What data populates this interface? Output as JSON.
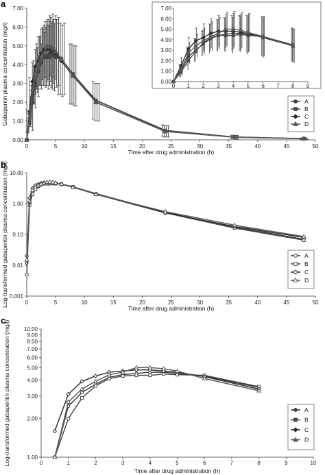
{
  "chart_data": [
    {
      "panel": "a",
      "type": "line",
      "xlabel": "Time after drug administration (h)",
      "ylabel": "Gabapentin plasma concentration (mg/l)",
      "xlim": [
        0,
        50
      ],
      "ylim": [
        0,
        7
      ],
      "xticks": [
        "0",
        "5",
        "10",
        "15",
        "20",
        "25",
        "30",
        "35",
        "40",
        "45",
        "50"
      ],
      "yticks": [
        "0.00",
        "1.00",
        "2.00",
        "3.00",
        "4.00",
        "5.00",
        "6.00",
        "7.00"
      ],
      "legend": [
        "A",
        "B",
        "C",
        "D"
      ],
      "legend_position": "right, below inset",
      "x": [
        0,
        0.5,
        1,
        1.5,
        2,
        2.5,
        3,
        3.5,
        4,
        4.5,
        5,
        6,
        8,
        12,
        24,
        36,
        48
      ],
      "series": [
        {
          "name": "A",
          "values": [
            0,
            1.0,
            2.4,
            3.0,
            3.6,
            4.1,
            4.4,
            4.5,
            4.6,
            4.6,
            4.5,
            4.3,
            3.5,
            2.1,
            0.5,
            0.15,
            0.06
          ],
          "error": [
            0,
            0.6,
            0.9,
            1.1,
            1.2,
            1.4,
            1.5,
            1.6,
            1.7,
            1.7,
            1.8,
            1.9,
            1.6,
            1.0,
            0.3,
            0.1,
            0.04
          ]
        },
        {
          "name": "B",
          "values": [
            0,
            0.9,
            2.0,
            2.9,
            3.7,
            4.2,
            4.4,
            4.4,
            4.4,
            4.5,
            4.4,
            4.3,
            3.5,
            2.0,
            0.45,
            0.15,
            0.06
          ],
          "error": [
            0,
            0.5,
            0.9,
            1.0,
            1.2,
            1.3,
            1.5,
            1.6,
            1.7,
            1.7,
            1.8,
            1.9,
            1.6,
            1.0,
            0.3,
            0.1,
            0.04
          ]
        },
        {
          "name": "C",
          "values": [
            0,
            1.5,
            3.1,
            3.9,
            4.2,
            4.6,
            4.8,
            4.8,
            4.8,
            4.7,
            4.6,
            4.2,
            3.4,
            2.0,
            0.45,
            0.14,
            0.06
          ],
          "error": [
            0,
            0.8,
            1.1,
            1.2,
            1.3,
            1.4,
            1.5,
            1.6,
            1.7,
            1.7,
            1.8,
            1.9,
            1.6,
            1.0,
            0.3,
            0.1,
            0.04
          ]
        },
        {
          "name": "D",
          "values": [
            0,
            1.2,
            2.7,
            3.4,
            3.9,
            4.3,
            4.6,
            5.0,
            5.0,
            4.9,
            4.7,
            4.3,
            3.4,
            2.0,
            0.45,
            0.14,
            0.06
          ],
          "error": [
            0,
            0.7,
            1.0,
            1.1,
            1.2,
            1.4,
            1.5,
            1.6,
            1.7,
            1.7,
            1.8,
            1.9,
            1.6,
            1.0,
            0.3,
            0.1,
            0.04
          ]
        }
      ],
      "inset": {
        "xlim": [
          0,
          9
        ],
        "ylim": [
          0,
          7
        ],
        "xticks": [
          "0",
          "1",
          "2",
          "3",
          "4",
          "5",
          "6",
          "7",
          "8",
          "9"
        ],
        "yticks": [
          "0.00",
          "1.00",
          "2.00",
          "3.00",
          "4.00",
          "5.00",
          "6.00",
          "7.00"
        ]
      }
    },
    {
      "panel": "b",
      "type": "line",
      "xlabel": "Time after drug administration (h)",
      "ylabel": "Log-transformed gabapentin plasma concentration (mg/l)",
      "yscale": "log",
      "xlim": [
        0,
        50
      ],
      "ylim": [
        0.001,
        10
      ],
      "xticks": [
        "0",
        "5",
        "10",
        "15",
        "20",
        "25",
        "30",
        "35",
        "40",
        "45",
        "50"
      ],
      "yticks": [
        "0.001",
        "0.01",
        "0.10",
        "1.00",
        "10.00"
      ],
      "legend": [
        "A",
        "B",
        "C",
        "D"
      ],
      "legend_position": "bottom-right",
      "x": [
        0,
        0.5,
        1,
        1.5,
        2,
        2.5,
        3,
        3.5,
        4,
        4.5,
        5,
        6,
        8,
        12,
        24,
        36,
        48
      ],
      "series": [
        {
          "name": "A",
          "values": [
            0.012,
            1.0,
            2.4,
            3.0,
            3.6,
            4.1,
            4.4,
            4.5,
            4.6,
            4.6,
            4.5,
            4.3,
            3.5,
            2.1,
            0.52,
            0.17,
            0.07
          ]
        },
        {
          "name": "B",
          "values": [
            0.005,
            0.9,
            2.0,
            2.9,
            3.7,
            4.2,
            4.4,
            4.4,
            4.4,
            4.5,
            4.4,
            4.3,
            3.5,
            2.0,
            0.5,
            0.16,
            0.065
          ]
        },
        {
          "name": "C",
          "values": [
            0.02,
            1.5,
            3.1,
            3.9,
            4.2,
            4.6,
            4.8,
            4.8,
            4.8,
            4.7,
            4.6,
            4.2,
            3.4,
            2.0,
            0.5,
            0.18,
            0.08
          ]
        },
        {
          "name": "D",
          "values": [
            0.015,
            1.2,
            2.7,
            3.4,
            3.9,
            4.3,
            4.6,
            5.0,
            5.0,
            4.9,
            4.7,
            4.3,
            3.4,
            2.0,
            0.55,
            0.2,
            0.085
          ]
        }
      ]
    },
    {
      "panel": "c",
      "type": "line",
      "xlabel": "Time after drug administration (h)",
      "ylabel": "Log-transformed gabapentin plasma concentration (mg/l)",
      "yscale": "log",
      "xlim": [
        0,
        10
      ],
      "ylim": [
        1,
        10
      ],
      "xticks": [
        "0",
        "1",
        "2",
        "3",
        "4",
        "5",
        "6",
        "7",
        "8",
        "9",
        "10"
      ],
      "yticks": [
        {
          "v": 1.0,
          "t": "1.00"
        },
        {
          "v": 2.0,
          "t": "2.00"
        },
        {
          "v": 3.0,
          "t": "3.00"
        },
        {
          "v": 4.0,
          "t": "4.00"
        },
        {
          "v": 5.0,
          "t": "5.00"
        },
        {
          "v": 6.0,
          "t": "6.00"
        },
        {
          "v": 7.0,
          "t": "7.00"
        },
        {
          "v": 8.0,
          "t": "8.00"
        },
        {
          "v": 9.0,
          "t": "9.00"
        },
        {
          "v": 10.0,
          "t": "10.00"
        }
      ],
      "legend": [
        "A",
        "B",
        "C",
        "D"
      ],
      "legend_position": "bottom-right",
      "x": [
        0.5,
        1,
        1.5,
        2,
        2.5,
        3,
        3.5,
        4,
        4.5,
        5,
        6,
        8
      ],
      "series": [
        {
          "name": "A",
          "values": [
            1.0,
            2.5,
            3.2,
            3.7,
            4.2,
            4.4,
            4.5,
            4.6,
            4.6,
            4.5,
            4.3,
            3.5
          ]
        },
        {
          "name": "B",
          "values": [
            1.0,
            2.0,
            2.9,
            3.6,
            4.1,
            4.3,
            4.35,
            4.35,
            4.45,
            4.4,
            4.35,
            3.55
          ]
        },
        {
          "name": "C",
          "values": [
            1.6,
            3.1,
            3.9,
            4.3,
            4.6,
            4.7,
            4.8,
            4.8,
            4.7,
            4.6,
            4.25,
            3.4
          ]
        },
        {
          "name": "D",
          "values": [
            1.0,
            2.7,
            3.4,
            3.9,
            4.4,
            4.6,
            5.0,
            5.0,
            4.9,
            4.7,
            4.1,
            3.3
          ]
        }
      ]
    }
  ]
}
